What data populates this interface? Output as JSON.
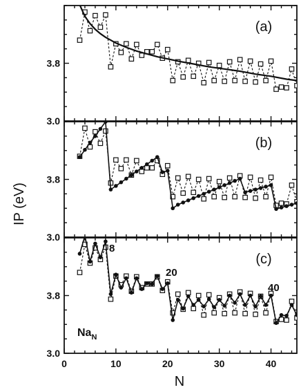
{
  "chart_data": [
    {
      "panel": "(a)",
      "type": "line",
      "xlim": [
        0,
        45
      ],
      "ylim": [
        3.0,
        4.6
      ],
      "y_ticks": [
        "3.0",
        "3.8"
      ],
      "x_ticks": [],
      "series": [
        {
          "style": "dashed line with open squares",
          "x": [
            3,
            4,
            5,
            6,
            7,
            8,
            9,
            10,
            11,
            12,
            13,
            14,
            15,
            16,
            17,
            18,
            19,
            20,
            21,
            22,
            23,
            24,
            25,
            26,
            27,
            28,
            29,
            30,
            31,
            32,
            33,
            34,
            35,
            36,
            37,
            38,
            39,
            40,
            41,
            42,
            43,
            44,
            45
          ],
          "y": [
            4.12,
            4.51,
            4.25,
            4.46,
            4.3,
            4.47,
            3.75,
            4.07,
            3.95,
            4.07,
            3.86,
            4.06,
            3.91,
            3.96,
            3.96,
            4.06,
            3.87,
            3.99,
            3.56,
            3.82,
            3.61,
            3.84,
            3.62,
            3.8,
            3.53,
            3.81,
            3.56,
            3.77,
            3.55,
            3.82,
            3.56,
            3.85,
            3.55,
            3.83,
            3.54,
            3.79,
            3.56,
            3.83,
            3.44,
            3.47,
            3.46,
            3.72,
            3.49
          ]
        },
        {
          "style": "solid curve",
          "x": [
            3,
            4,
            5,
            6,
            7,
            8,
            9,
            10,
            12,
            14,
            16,
            18,
            20,
            22,
            25,
            28,
            31,
            34,
            37,
            40,
            43,
            45
          ],
          "y": [
            4.61,
            4.45,
            4.35,
            4.27,
            4.21,
            4.16,
            4.12,
            4.08,
            4.02,
            3.97,
            3.93,
            3.89,
            3.86,
            3.83,
            3.79,
            3.75,
            3.72,
            3.69,
            3.65,
            3.62,
            3.58,
            3.56
          ]
        }
      ]
    },
    {
      "panel": "(b)",
      "type": "line",
      "xlim": [
        0,
        45
      ],
      "ylim": [
        3.0,
        4.6
      ],
      "y_ticks": [
        "3.0",
        "3.8"
      ],
      "x_ticks": [],
      "series": [
        {
          "style": "dashed line with open squares",
          "x": [
            3,
            4,
            5,
            6,
            7,
            8,
            9,
            10,
            11,
            12,
            13,
            14,
            15,
            16,
            17,
            18,
            19,
            20,
            21,
            22,
            23,
            24,
            25,
            26,
            27,
            28,
            29,
            30,
            31,
            32,
            33,
            34,
            35,
            36,
            37,
            38,
            39,
            40,
            41,
            42,
            43,
            44,
            45
          ],
          "y": [
            4.12,
            4.51,
            4.25,
            4.46,
            4.3,
            4.47,
            3.75,
            4.07,
            3.95,
            4.07,
            3.86,
            4.06,
            3.91,
            3.96,
            3.96,
            4.06,
            3.87,
            3.99,
            3.56,
            3.82,
            3.61,
            3.84,
            3.62,
            3.8,
            3.53,
            3.81,
            3.56,
            3.77,
            3.55,
            3.82,
            3.56,
            3.85,
            3.55,
            3.83,
            3.54,
            3.79,
            3.56,
            3.83,
            3.44,
            3.47,
            3.46,
            3.72,
            3.49
          ]
        },
        {
          "style": "solid line with filled circles",
          "x": [
            3,
            4,
            5,
            6,
            7,
            8,
            9,
            10,
            11,
            12,
            13,
            14,
            15,
            16,
            17,
            18,
            19,
            20,
            21,
            22,
            23,
            24,
            25,
            26,
            27,
            28,
            29,
            30,
            31,
            32,
            33,
            34,
            35,
            36,
            37,
            38,
            39,
            40,
            41,
            42,
            43,
            44,
            45
          ],
          "y": [
            4.11,
            4.21,
            4.31,
            4.4,
            4.5,
            4.6,
            3.66,
            3.71,
            3.76,
            3.81,
            3.86,
            3.91,
            3.96,
            4.01,
            4.06,
            4.11,
            3.9,
            3.92,
            3.4,
            3.45,
            3.48,
            3.51,
            3.54,
            3.57,
            3.6,
            3.63,
            3.66,
            3.69,
            3.72,
            3.75,
            3.78,
            3.81,
            3.62,
            3.64,
            3.66,
            3.68,
            3.7,
            3.72,
            3.39,
            3.41,
            3.43,
            3.45,
            3.47
          ]
        }
      ]
    },
    {
      "panel": "(c)",
      "type": "line",
      "xlim": [
        0,
        45
      ],
      "ylim": [
        3.0,
        4.6
      ],
      "y_ticks": [
        "3.0",
        "3.8"
      ],
      "x_ticks": [
        "0",
        "10",
        "20",
        "30",
        "40"
      ],
      "xlabel": "N",
      "annotations": [
        "8",
        "20",
        "40",
        "Na_N"
      ],
      "series": [
        {
          "style": "dashed line with open squares",
          "x": [
            3,
            4,
            5,
            6,
            7,
            8,
            9,
            10,
            11,
            12,
            13,
            14,
            15,
            16,
            17,
            18,
            19,
            20,
            21,
            22,
            23,
            24,
            25,
            26,
            27,
            28,
            29,
            30,
            31,
            32,
            33,
            34,
            35,
            36,
            37,
            38,
            39,
            40,
            41,
            42,
            43,
            44,
            45
          ],
          "y": [
            4.12,
            4.51,
            4.25,
            4.46,
            4.3,
            4.47,
            3.75,
            4.07,
            3.95,
            4.07,
            3.86,
            4.06,
            3.91,
            3.96,
            3.96,
            4.06,
            3.87,
            3.99,
            3.56,
            3.82,
            3.61,
            3.84,
            3.62,
            3.8,
            3.53,
            3.81,
            3.56,
            3.77,
            3.55,
            3.82,
            3.56,
            3.85,
            3.55,
            3.83,
            3.54,
            3.79,
            3.56,
            3.83,
            3.44,
            3.47,
            3.46,
            3.72,
            3.49
          ]
        },
        {
          "style": "solid line with filled circles",
          "x": [
            3,
            4,
            5,
            6,
            7,
            8,
            9,
            10,
            11,
            12,
            13,
            14,
            15,
            16,
            17,
            18,
            19,
            20,
            21,
            22,
            23,
            24,
            25,
            26,
            27,
            28,
            29,
            30,
            31,
            32,
            33,
            34,
            35,
            36,
            37,
            38,
            39,
            40,
            41,
            42,
            43,
            44,
            45
          ],
          "y": [
            4.38,
            4.63,
            4.27,
            4.52,
            4.33,
            4.55,
            3.82,
            4.09,
            3.91,
            4.04,
            3.84,
            4.04,
            3.89,
            3.97,
            3.96,
            4.07,
            3.89,
            3.97,
            3.46,
            3.74,
            3.62,
            3.79,
            3.67,
            3.74,
            3.65,
            3.75,
            3.64,
            3.74,
            3.66,
            3.8,
            3.7,
            3.82,
            3.67,
            3.8,
            3.65,
            3.79,
            3.67,
            3.8,
            3.42,
            3.53,
            3.52,
            3.67,
            3.53
          ]
        }
      ]
    }
  ],
  "figure": {
    "ylabel": "IP (eV)"
  }
}
